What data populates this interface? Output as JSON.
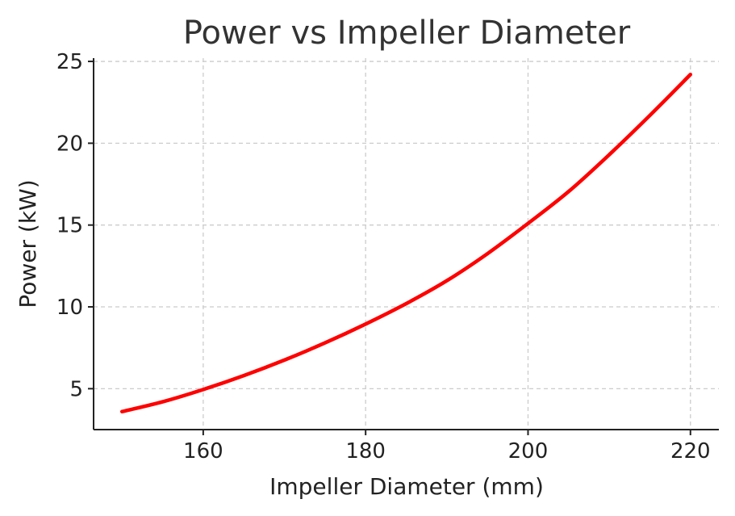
{
  "chart_data": {
    "type": "line",
    "title": "Power vs Impeller Diameter",
    "xlabel": "Impeller Diameter (mm)",
    "ylabel": "Power (kW)",
    "xlim": [
      146.5,
      223.5
    ],
    "ylim": [
      2.5,
      25.2
    ],
    "xticks": [
      160,
      180,
      200,
      220
    ],
    "yticks": [
      5,
      10,
      15,
      20,
      25
    ],
    "grid": true,
    "series": [
      {
        "color": "#ff0000",
        "x": [
          150,
          155,
          160,
          165,
          170,
          175,
          180,
          185,
          190,
          195,
          200,
          205,
          210,
          215,
          220
        ],
        "y": [
          3.6,
          4.2,
          4.95,
          5.8,
          6.75,
          7.8,
          8.95,
          10.2,
          11.6,
          13.25,
          15.1,
          17.05,
          19.3,
          21.7,
          24.2
        ]
      }
    ]
  }
}
